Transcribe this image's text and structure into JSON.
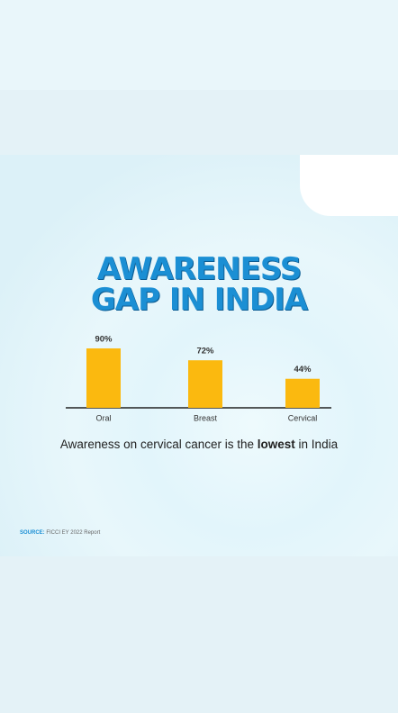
{
  "chart_data": {
    "type": "bar",
    "title": "AWARENESS GAP IN INDIA",
    "categories": [
      "Oral",
      "Breast",
      "Cervical"
    ],
    "values": [
      90,
      72,
      44
    ],
    "value_labels": [
      "90%",
      "72%",
      "44%"
    ],
    "color": "#fbb90f",
    "caption": {
      "before": "Awareness on cervical cancer is the",
      "bold": "lowest",
      "after": "in India"
    },
    "source_label": "SOURCE:",
    "source": "FICCI EY 2022 Report"
  }
}
